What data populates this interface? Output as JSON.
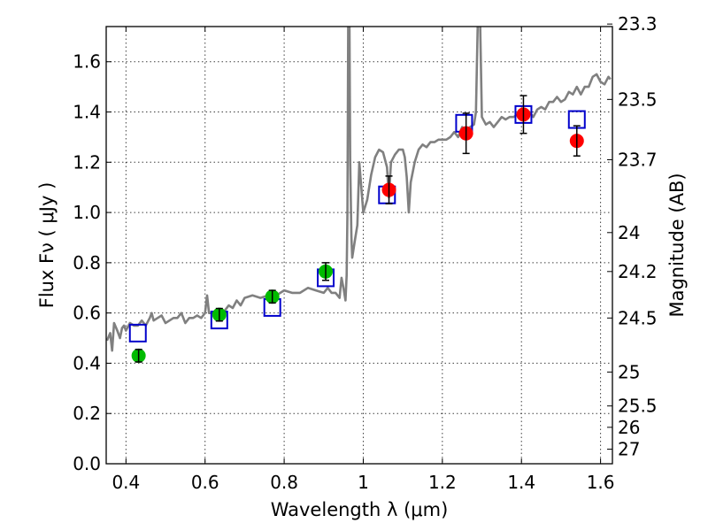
{
  "chart_data": {
    "type": "scatter",
    "title": "",
    "xlabel": "Wavelength  λ (μm)",
    "ylabel": "Flux  Fν  ( μJy )",
    "ylabel_right": "Magnitude (AB)",
    "xlim": [
      0.35,
      1.63
    ],
    "ylim": [
      0.0,
      1.74
    ],
    "grid": true,
    "xticks": [
      0.4,
      0.6,
      0.8,
      1.0,
      1.2,
      1.4,
      1.6
    ],
    "xtick_labels": [
      "0.4",
      "0.6",
      "0.8",
      "1",
      "1.2",
      "1.4",
      "1.6"
    ],
    "yticks": [
      0.0,
      0.2,
      0.4,
      0.6,
      0.8,
      1.0,
      1.2,
      1.4,
      1.6
    ],
    "ytick_labels": [
      "0.0",
      "0.2",
      "0.4",
      "0.6",
      "0.8",
      "1.0",
      "1.2",
      "1.4",
      "1.6"
    ],
    "right_ticks": [
      {
        "label": "23.3",
        "flux": 1.75
      },
      {
        "label": "23.5",
        "flux": 1.45
      },
      {
        "label": "23.7",
        "flux": 1.21
      },
      {
        "label": "24",
        "flux": 0.92
      },
      {
        "label": "24.2",
        "flux": 0.765
      },
      {
        "label": "24.5",
        "flux": 0.58
      },
      {
        "label": "25",
        "flux": 0.365
      },
      {
        "label": "25.5",
        "flux": 0.23
      },
      {
        "label": "26",
        "flux": 0.145
      },
      {
        "label": "27",
        "flux": 0.058
      }
    ],
    "series": [
      {
        "kind": "line",
        "color": "#808080",
        "x": [
          0.352,
          0.36,
          0.365,
          0.37,
          0.378,
          0.385,
          0.39,
          0.395,
          0.4,
          0.41,
          0.42,
          0.43,
          0.44,
          0.45,
          0.46,
          0.465,
          0.47,
          0.48,
          0.49,
          0.5,
          0.51,
          0.52,
          0.53,
          0.54,
          0.55,
          0.56,
          0.57,
          0.58,
          0.59,
          0.6,
          0.605,
          0.61,
          0.615,
          0.62,
          0.63,
          0.64,
          0.65,
          0.66,
          0.67,
          0.68,
          0.69,
          0.7,
          0.72,
          0.74,
          0.76,
          0.78,
          0.8,
          0.82,
          0.84,
          0.86,
          0.88,
          0.9,
          0.91,
          0.92,
          0.93,
          0.94,
          0.945,
          0.95,
          0.955,
          0.958,
          0.96,
          0.962,
          0.965,
          0.967,
          0.97,
          0.972,
          0.975,
          0.98,
          0.985,
          0.99,
          1.0,
          1.01,
          1.02,
          1.03,
          1.04,
          1.05,
          1.06,
          1.065,
          1.07,
          1.08,
          1.09,
          1.1,
          1.105,
          1.11,
          1.115,
          1.12,
          1.13,
          1.14,
          1.15,
          1.16,
          1.17,
          1.18,
          1.19,
          1.2,
          1.21,
          1.22,
          1.23,
          1.24,
          1.25,
          1.26,
          1.27,
          1.28,
          1.285,
          1.29,
          1.295,
          1.3,
          1.31,
          1.32,
          1.33,
          1.34,
          1.35,
          1.36,
          1.37,
          1.38,
          1.39,
          1.4,
          1.41,
          1.42,
          1.43,
          1.44,
          1.45,
          1.46,
          1.47,
          1.48,
          1.49,
          1.5,
          1.51,
          1.52,
          1.53,
          1.54,
          1.55,
          1.56,
          1.57,
          1.58,
          1.59,
          1.6,
          1.61,
          1.62,
          1.625
        ],
        "y": [
          0.49,
          0.52,
          0.45,
          0.56,
          0.53,
          0.5,
          0.54,
          0.55,
          0.53,
          0.56,
          0.55,
          0.55,
          0.57,
          0.55,
          0.58,
          0.6,
          0.57,
          0.58,
          0.59,
          0.56,
          0.57,
          0.58,
          0.58,
          0.6,
          0.56,
          0.58,
          0.58,
          0.59,
          0.58,
          0.6,
          0.67,
          0.6,
          0.6,
          0.6,
          0.61,
          0.6,
          0.61,
          0.63,
          0.62,
          0.65,
          0.63,
          0.66,
          0.67,
          0.66,
          0.67,
          0.67,
          0.69,
          0.68,
          0.68,
          0.7,
          0.69,
          0.68,
          0.7,
          0.68,
          0.68,
          0.66,
          0.74,
          0.7,
          0.65,
          0.75,
          1.0,
          1.8,
          1.8,
          1.2,
          0.9,
          0.82,
          0.85,
          0.9,
          0.95,
          1.2,
          1.0,
          1.05,
          1.15,
          1.22,
          1.25,
          1.24,
          1.18,
          1.06,
          1.2,
          1.23,
          1.25,
          1.25,
          1.22,
          1.14,
          1.0,
          1.12,
          1.2,
          1.25,
          1.27,
          1.26,
          1.28,
          1.28,
          1.29,
          1.29,
          1.29,
          1.3,
          1.32,
          1.3,
          1.34,
          1.33,
          1.34,
          1.35,
          1.4,
          1.8,
          1.8,
          1.38,
          1.35,
          1.36,
          1.34,
          1.36,
          1.38,
          1.37,
          1.38,
          1.38,
          1.39,
          1.4,
          1.39,
          1.4,
          1.38,
          1.41,
          1.42,
          1.41,
          1.44,
          1.44,
          1.46,
          1.44,
          1.45,
          1.48,
          1.47,
          1.5,
          1.47,
          1.5,
          1.5,
          1.54,
          1.55,
          1.52,
          1.51,
          1.54,
          1.53
        ]
      },
      {
        "kind": "model-photometry",
        "marker": "open-square",
        "color": "#0000cc",
        "x": [
          0.43,
          0.636,
          0.77,
          0.905,
          1.06,
          1.255,
          1.405,
          1.54
        ],
        "y": [
          0.52,
          0.572,
          0.622,
          0.74,
          1.07,
          1.355,
          1.39,
          1.37
        ]
      },
      {
        "kind": "observed-optical",
        "marker": "filled-circle",
        "color": "#00bb00",
        "x": [
          0.432,
          0.636,
          0.77,
          0.905
        ],
        "y": [
          0.43,
          0.593,
          0.665,
          0.765
        ],
        "yerr": [
          0.025,
          0.025,
          0.025,
          0.035
        ]
      },
      {
        "kind": "observed-nir",
        "marker": "filled-circle",
        "color": "#ff0000",
        "x": [
          1.065,
          1.26,
          1.405,
          1.54
        ],
        "y": [
          1.09,
          1.315,
          1.39,
          1.285
        ],
        "yerr": [
          0.055,
          0.08,
          0.075,
          0.06
        ]
      }
    ]
  }
}
